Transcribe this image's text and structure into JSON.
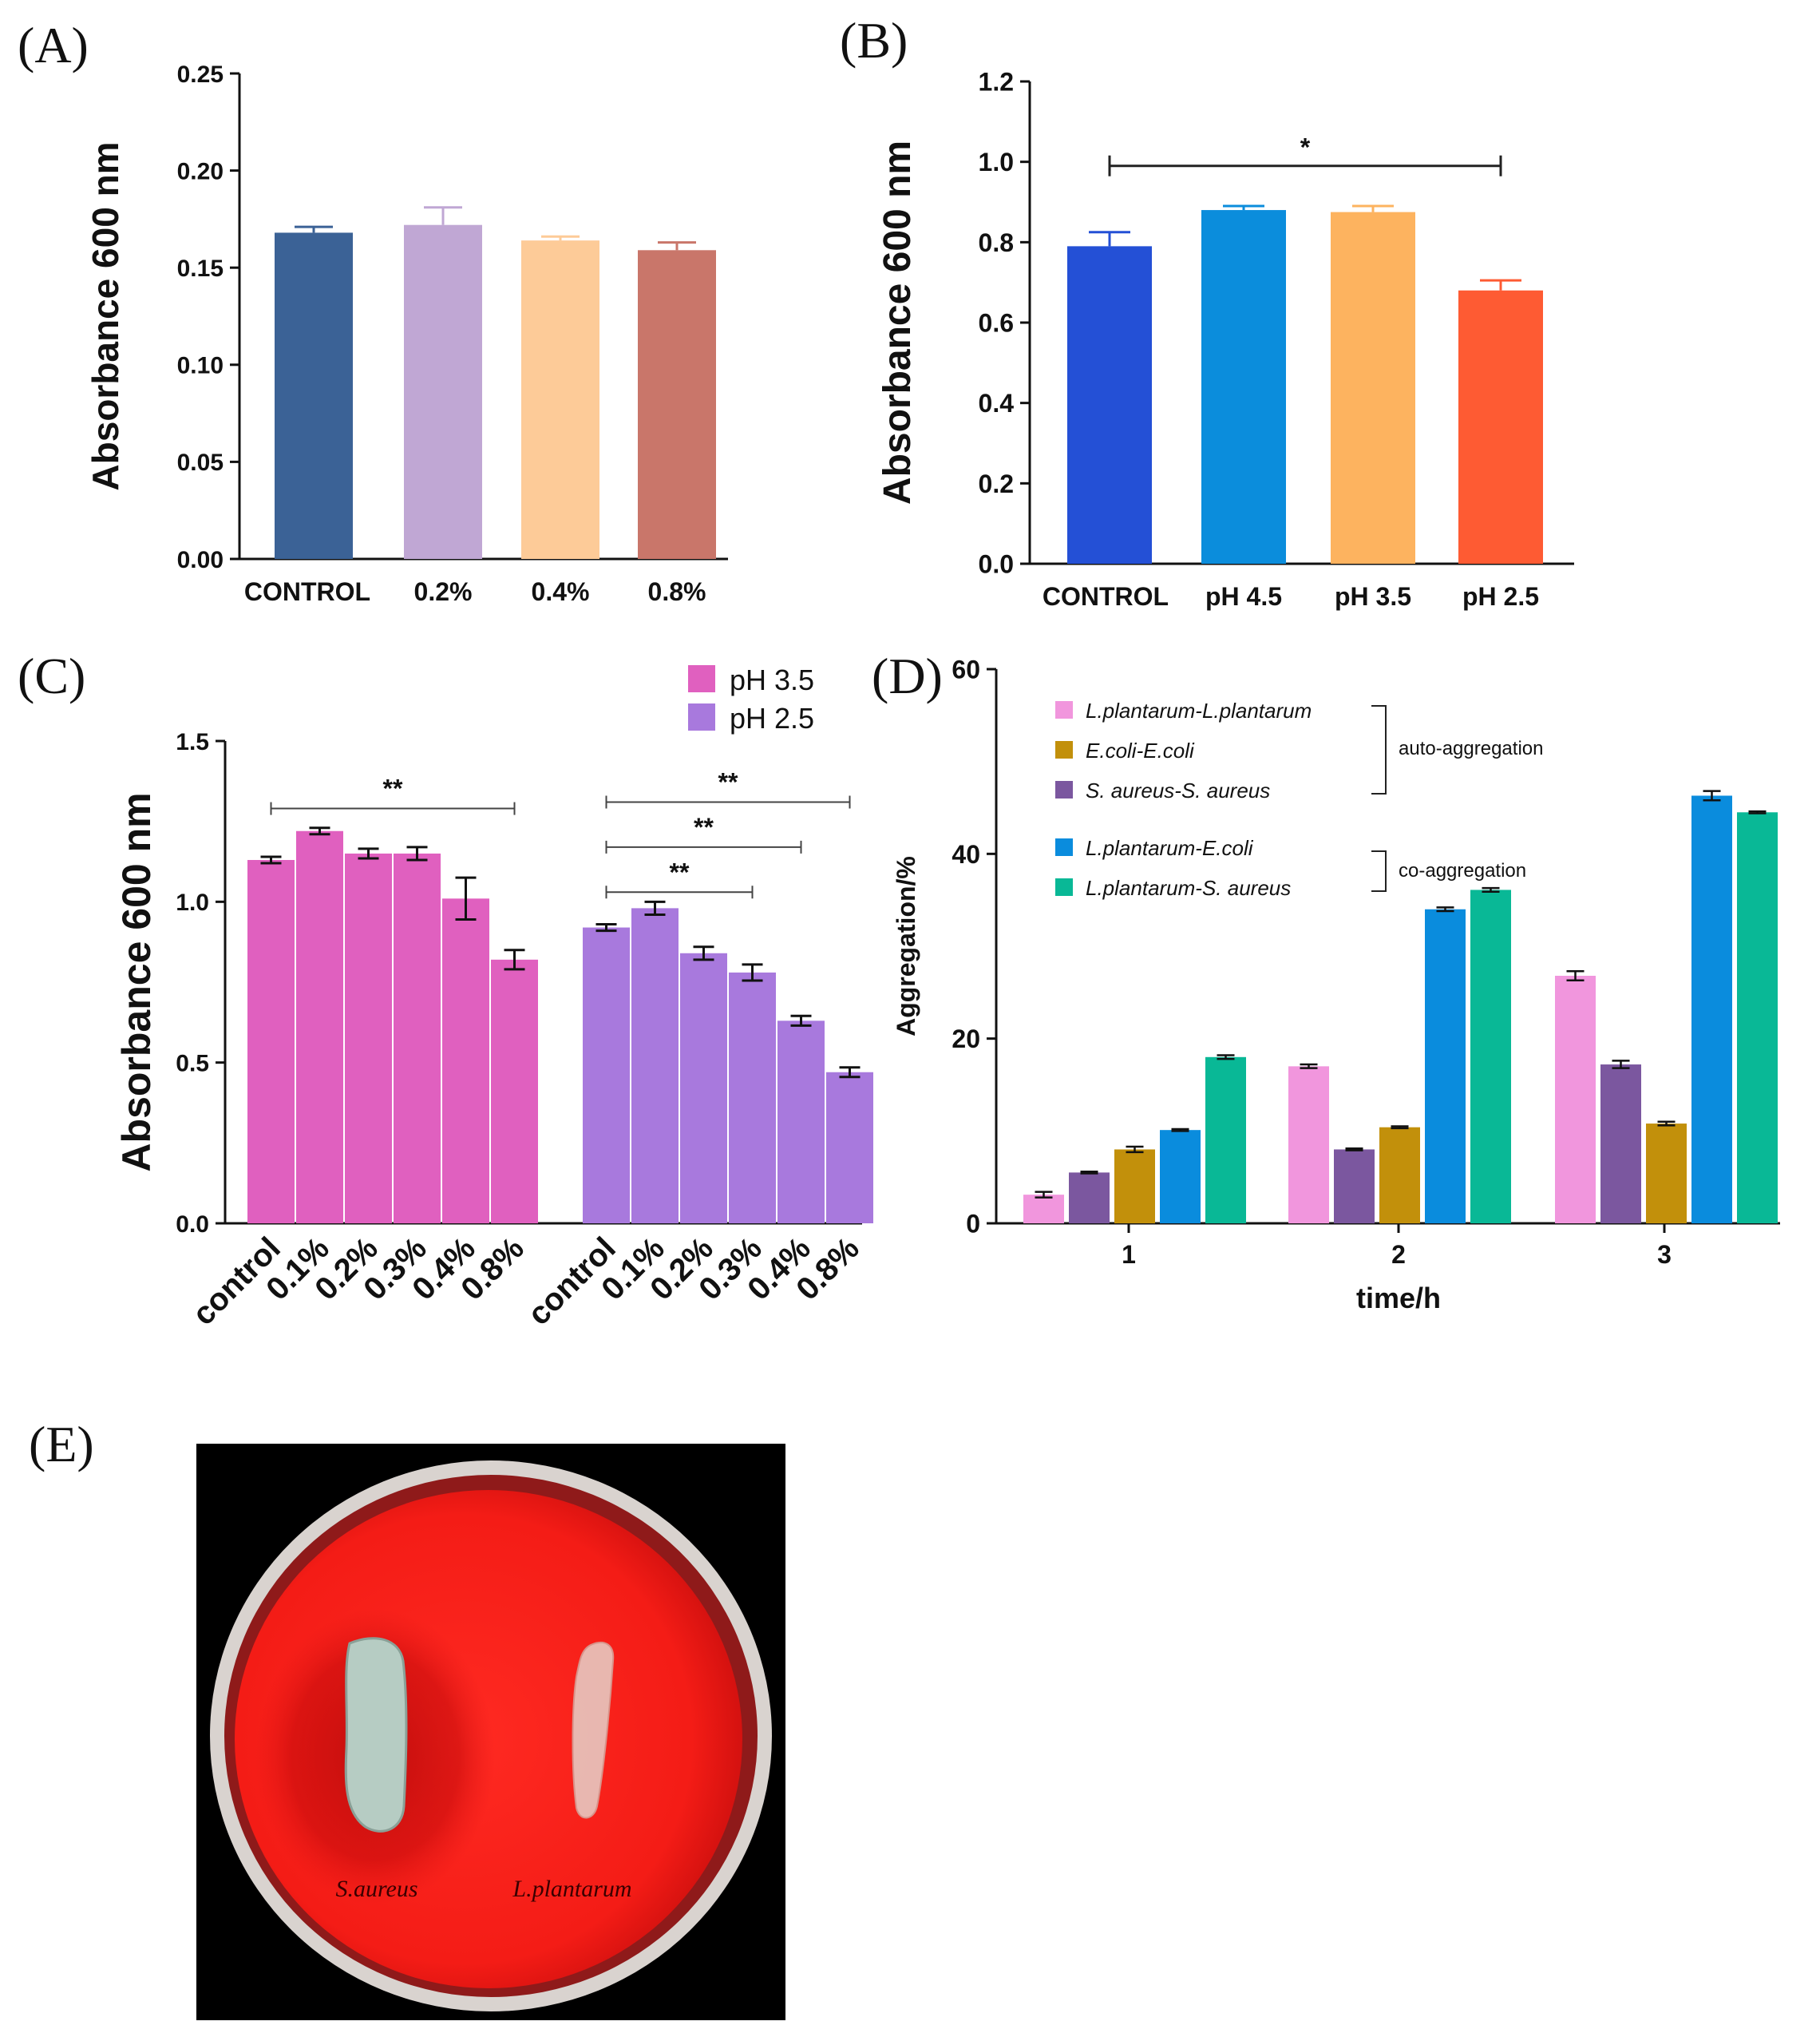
{
  "panel_labels": [
    "(A)",
    "(B)",
    "(C)",
    "(D)",
    "(E)"
  ],
  "chart_data": [
    {
      "id": "A",
      "type": "bar",
      "ylabel": "Absorbance 600 nm",
      "ylim": [
        0,
        0.25
      ],
      "yticks": [
        0.0,
        0.05,
        0.1,
        0.15,
        0.2,
        0.25
      ],
      "ytick_labels": [
        "0.00",
        "0.05",
        "0.10",
        "0.15",
        "0.20",
        "0.25"
      ],
      "categories": [
        "CONTROL",
        "0.2%",
        "0.4%",
        "0.8%"
      ],
      "values": [
        0.168,
        0.172,
        0.164,
        0.159
      ],
      "errors": [
        0.003,
        0.009,
        0.002,
        0.004
      ],
      "colors": [
        "#3b6296",
        "#c0a7d4",
        "#fdcb98",
        "#c9766a"
      ]
    },
    {
      "id": "B",
      "type": "bar",
      "ylabel": "Absorbance 600 nm",
      "ylim": [
        0,
        1.2
      ],
      "yticks": [
        0.0,
        0.2,
        0.4,
        0.6,
        0.8,
        1.0,
        1.2
      ],
      "ytick_labels": [
        "0.0",
        "0.2",
        "0.4",
        "0.6",
        "0.8",
        "1.0",
        "1.2"
      ],
      "categories": [
        "CONTROL",
        "pH 4.5",
        "pH 3.5",
        "pH 2.5"
      ],
      "values": [
        0.79,
        0.88,
        0.875,
        0.68
      ],
      "errors": [
        0.035,
        0.01,
        0.015,
        0.025
      ],
      "colors": [
        "#2450d6",
        "#0b8ddc",
        "#fdb35f",
        "#fe5b33"
      ],
      "significance": [
        {
          "from": 0,
          "to": 3,
          "label": "*",
          "y": 0.99
        }
      ]
    },
    {
      "id": "C",
      "type": "bar",
      "ylabel": "Absorbance 600 nm",
      "ylim": [
        0,
        1.5
      ],
      "yticks": [
        0.0,
        0.5,
        1.0,
        1.5
      ],
      "ytick_labels": [
        "0.0",
        "0.5",
        "1.0",
        "1.5"
      ],
      "categories": [
        "control",
        "0.1%",
        "0.2%",
        "0.3%",
        "0.4%",
        "0.8%"
      ],
      "series": [
        {
          "name": "pH 3.5",
          "color": "#e060bf",
          "values": [
            1.13,
            1.22,
            1.15,
            1.15,
            1.01,
            0.82
          ],
          "errors": [
            0.01,
            0.01,
            0.015,
            0.02,
            0.065,
            0.03
          ]
        },
        {
          "name": "pH 2.5",
          "color": "#a879dd",
          "values": [
            0.92,
            0.98,
            0.84,
            0.78,
            0.63,
            0.47
          ],
          "errors": [
            0.01,
            0.02,
            0.02,
            0.025,
            0.015,
            0.015
          ]
        }
      ],
      "significance": [
        {
          "group": 0,
          "from": 0,
          "to": 5,
          "label": "**",
          "y": 1.29
        },
        {
          "group": 1,
          "from": 0,
          "to": 5,
          "label": "**",
          "y": 1.31
        },
        {
          "group": 1,
          "from": 0,
          "to": 4,
          "label": "**",
          "y": 1.17
        },
        {
          "group": 1,
          "from": 0,
          "to": 3,
          "label": "**",
          "y": 1.03
        }
      ]
    },
    {
      "id": "D",
      "type": "bar",
      "xlabel": "time/h",
      "ylabel": "Aggregation/%",
      "ylim": [
        0,
        60
      ],
      "yticks": [
        0,
        20,
        40,
        60
      ],
      "ytick_labels": [
        "0",
        "20",
        "40",
        "60"
      ],
      "categories": [
        "1",
        "2",
        "3"
      ],
      "series": [
        {
          "name": "L.plantarum-L.plantarum",
          "color": "#f196dd",
          "values": [
            3.1,
            17.0,
            26.8
          ],
          "errors": [
            0.3,
            0.2,
            0.5
          ]
        },
        {
          "name": "S. aureus-S. aureus",
          "color": "#7b579f",
          "values": [
            5.5,
            8.0,
            17.2
          ],
          "errors": [
            0.1,
            0.1,
            0.4
          ]
        },
        {
          "name": "E.coli-E.coli",
          "color": "#c2900b",
          "values": [
            8.0,
            10.4,
            10.8
          ],
          "errors": [
            0.3,
            0.1,
            0.2
          ]
        },
        {
          "name": "L.plantarum-E.coli",
          "color": "#0a8cdd",
          "values": [
            10.1,
            34.0,
            46.3
          ],
          "errors": [
            0.1,
            0.2,
            0.5
          ]
        },
        {
          "name": "L.plantarum-S. aureus",
          "color": "#09b896",
          "values": [
            18.0,
            36.1,
            44.5
          ],
          "errors": [
            0.2,
            0.2,
            0.1
          ]
        }
      ],
      "legend_order": [
        0,
        2,
        1,
        3,
        4
      ],
      "groups": [
        {
          "label": "auto-aggregation",
          "members": [
            0,
            2,
            1
          ]
        },
        {
          "label": "co-aggregation",
          "members": [
            3,
            4
          ]
        }
      ]
    }
  ],
  "photo": {
    "labels": [
      "S.aureus",
      "L.plantarum"
    ]
  }
}
